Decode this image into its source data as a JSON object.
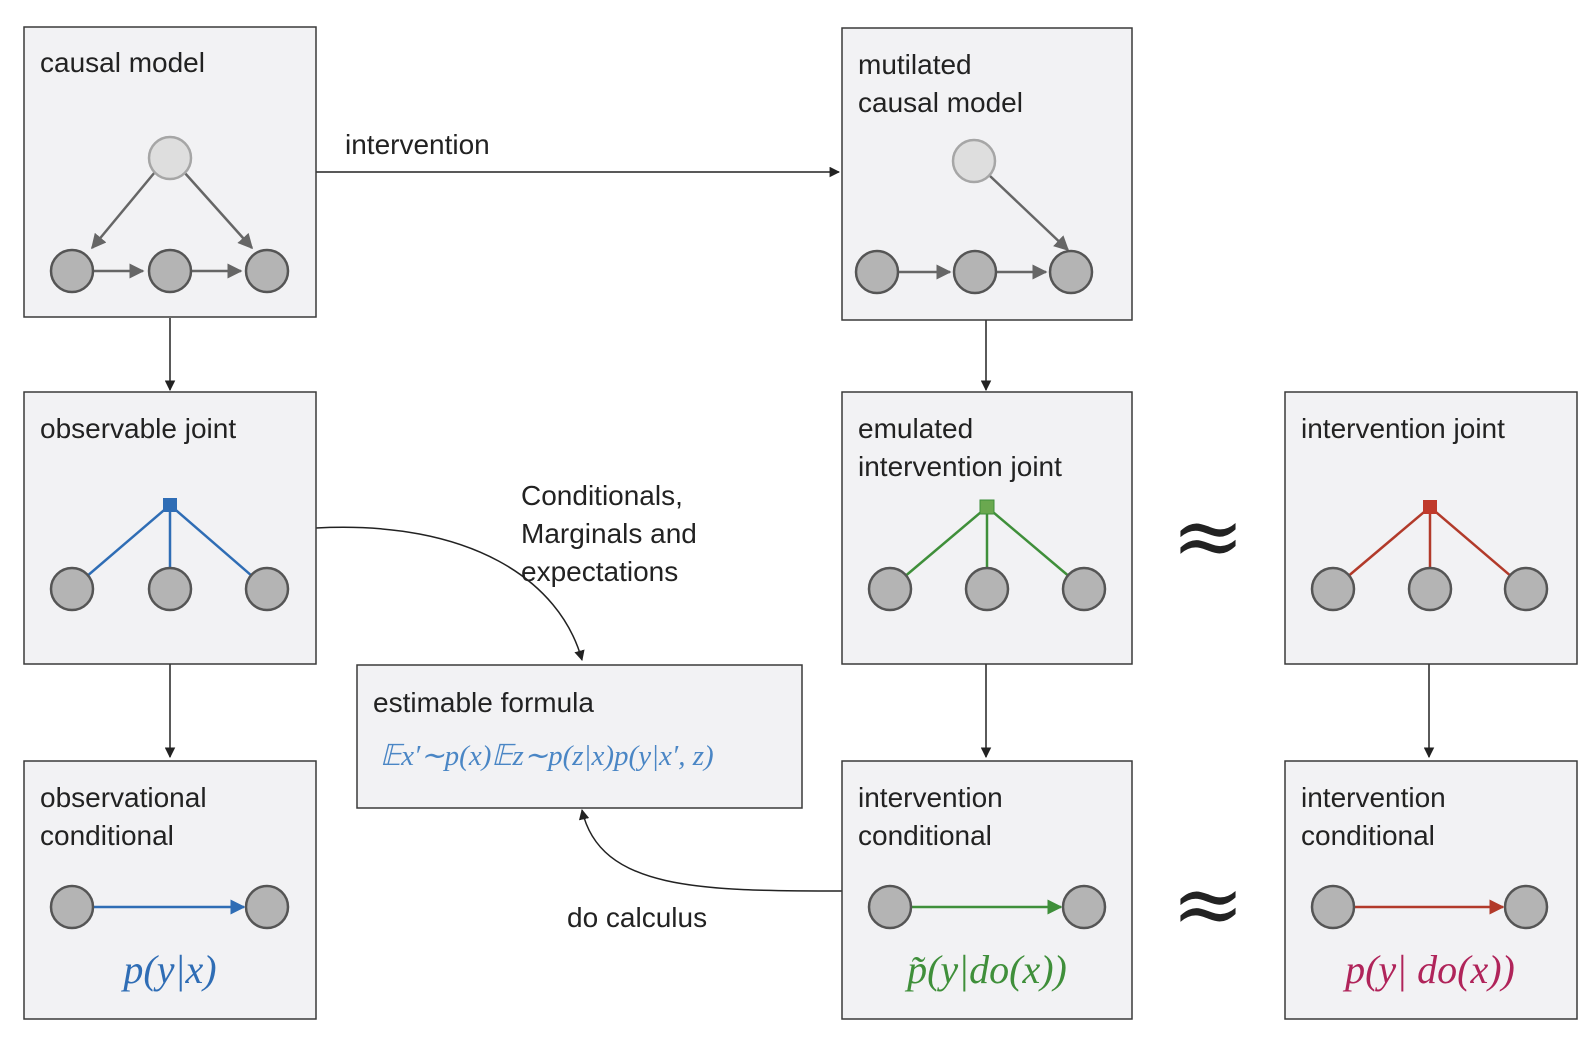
{
  "boxes": {
    "causal_model": {
      "label_line1": "causal model"
    },
    "mutilated": {
      "label_line1": "mutilated",
      "label_line2": "causal model"
    },
    "observable_joint": {
      "label_line1": "observable joint"
    },
    "emulated_joint": {
      "label_line1": "emulated",
      "label_line2": "intervention joint"
    },
    "intervention_joint": {
      "label_line1": "intervention joint"
    },
    "estimable": {
      "label_line1": "estimable formula",
      "formula": "𝔼x′∼p(x)𝔼z∼p(z|x)p(y|x′, z)"
    },
    "obs_conditional": {
      "label_line1": "observational",
      "label_line2": "conditional",
      "formula": "p(y|x)"
    },
    "int_conditional_emulated": {
      "label_line1": "intervention",
      "label_line2": "conditional",
      "formula": "p̃(y|do(x))"
    },
    "int_conditional_true": {
      "label_line1": "intervention",
      "label_line2": "conditional",
      "formula": "p(y| do(x))"
    }
  },
  "edges": {
    "intervention": "intervention",
    "marginals_line1": "Conditionals,",
    "marginals_line2": "Marginals and",
    "marginals_line3": "expectations",
    "do_calculus": "do calculus"
  },
  "approx_symbol": "≈",
  "colors": {
    "observed": "#2f6db5",
    "emulated": "#3f8f3a",
    "true": "#b23a2a",
    "formula_true": "#b0245a",
    "formula_est": "#4a86c5"
  }
}
